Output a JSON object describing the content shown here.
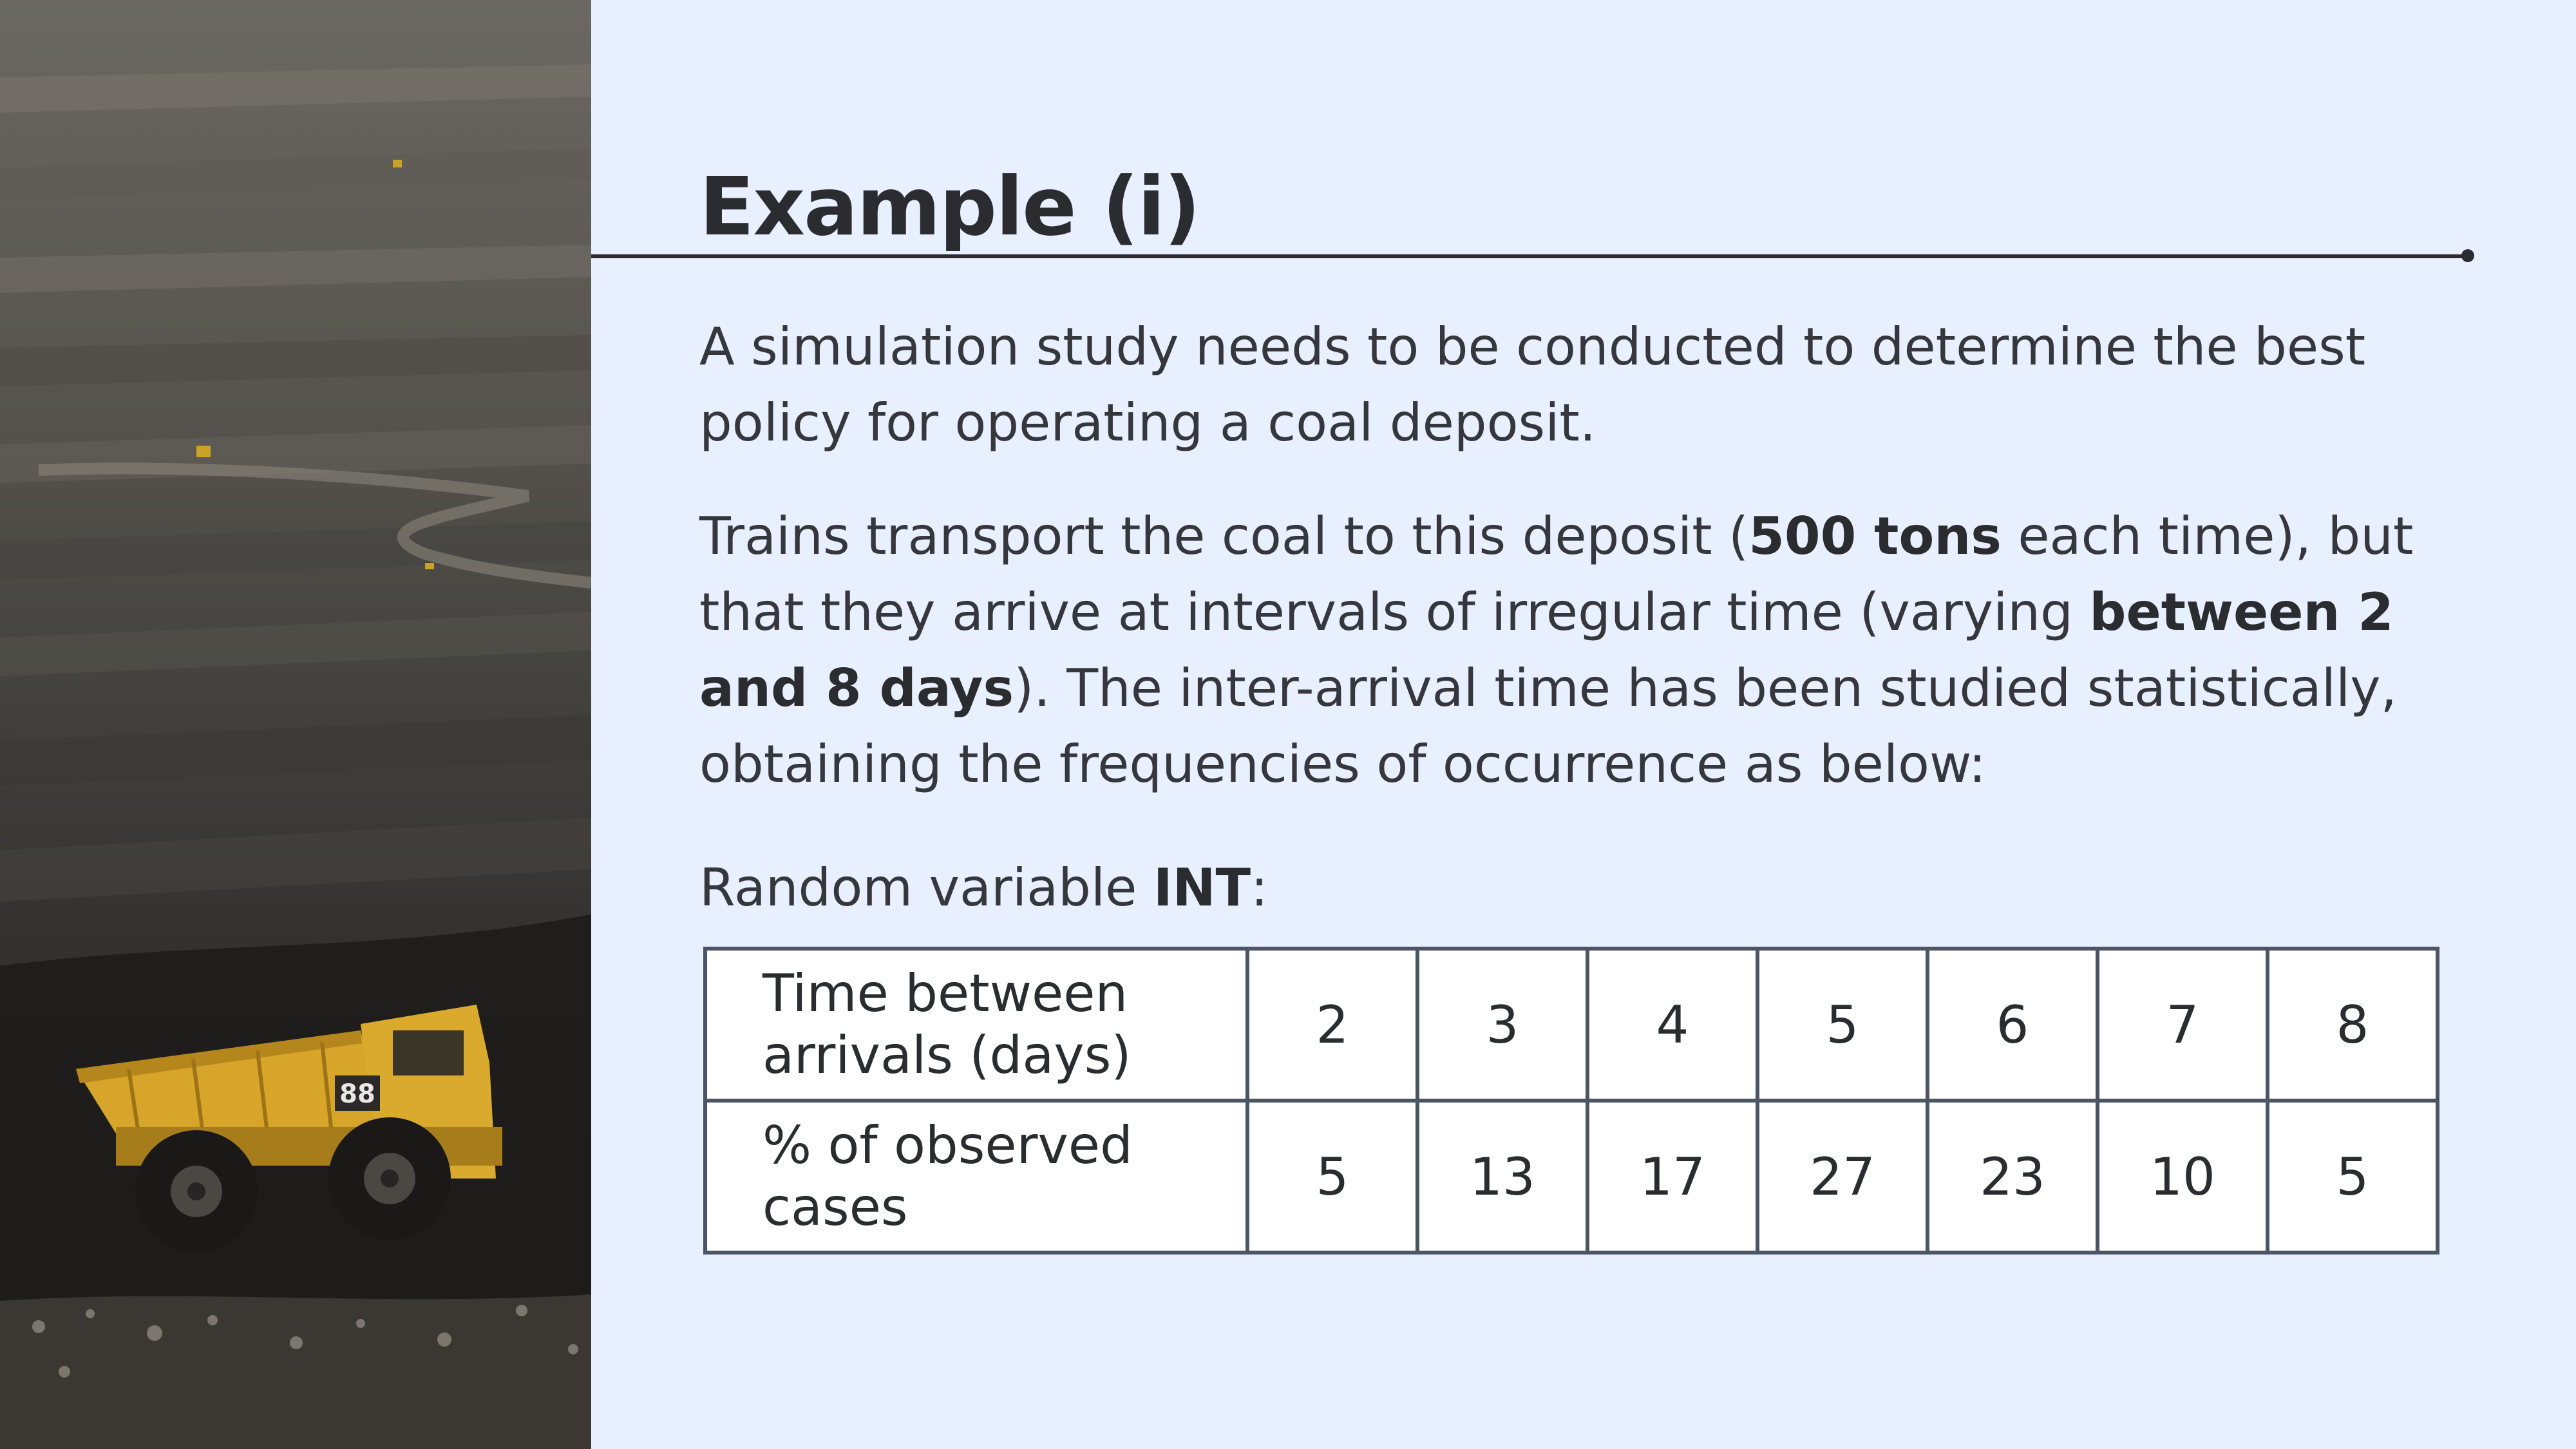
{
  "slide": {
    "title": "Example (i)",
    "paragraph1": "A simulation study needs to be conducted to determine the best policy for operating a coal deposit.",
    "paragraph2": {
      "part1": "Trains transport the coal to this deposit (",
      "bold1": "500 tons",
      "part2": " each time), but that they arrive at intervals of irregular time (varying ",
      "bold2": "between 2 and 8 days",
      "part3": "). The inter-arrival time has been studied statistically, obtaining the frequencies of occurrence as below:"
    },
    "random_variable": {
      "prefix": "Random variable ",
      "name": "INT",
      "suffix": ":"
    }
  },
  "table": {
    "row1_label": "Time between arrivals (days)",
    "row2_label": "% of observed cases",
    "times": [
      "2",
      "3",
      "4",
      "5",
      "6",
      "7",
      "8"
    ],
    "percentages": [
      "5",
      "13",
      "17",
      "27",
      "23",
      "10",
      "5"
    ]
  },
  "image": {
    "truck_number": "88"
  }
}
